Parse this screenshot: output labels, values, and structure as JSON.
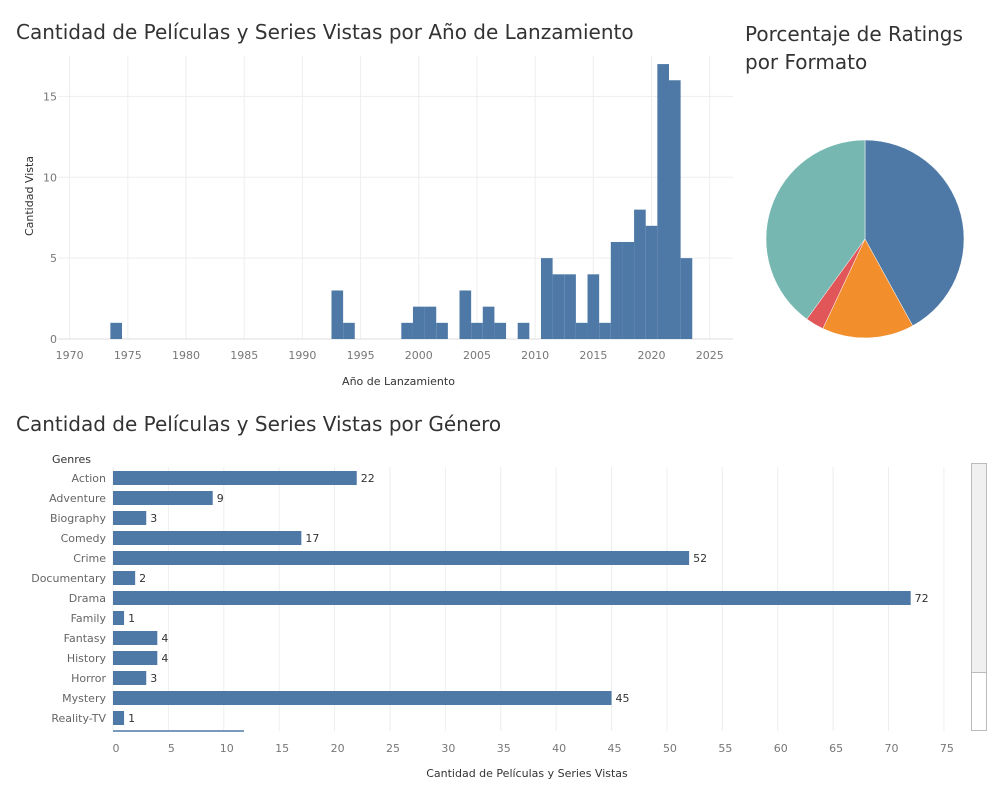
{
  "chart_data": [
    {
      "type": "bar",
      "title": "Cantidad de Películas y Series Vistas por Año de Lanzamiento",
      "xlabel": "Año de Lanzamiento",
      "ylabel": "Cantidad Vista",
      "xlim": [
        1969,
        2027
      ],
      "ylim": [
        0,
        17.5
      ],
      "xticks": [
        1970,
        1975,
        1980,
        1985,
        1990,
        1995,
        2000,
        2005,
        2010,
        2015,
        2020,
        2025
      ],
      "yticks": [
        0,
        5,
        10,
        15
      ],
      "grid": true,
      "color": "#4e79a7",
      "x": [
        1974,
        1993,
        1994,
        1999,
        2000,
        2001,
        2002,
        2004,
        2005,
        2006,
        2007,
        2009,
        2011,
        2012,
        2013,
        2014,
        2015,
        2016,
        2017,
        2018,
        2019,
        2020,
        2021,
        2022,
        2023
      ],
      "values": [
        1,
        3,
        1,
        1,
        2,
        2,
        1,
        3,
        1,
        2,
        1,
        1,
        5,
        4,
        4,
        1,
        4,
        1,
        6,
        6,
        8,
        7,
        17,
        16,
        5
      ]
    },
    {
      "type": "pie",
      "title": "Porcentaje de Ratings por Formato",
      "legend": "none",
      "slices": [
        {
          "value": 42,
          "color": "#4e79a7"
        },
        {
          "value": 15,
          "color": "#f28e2b"
        },
        {
          "value": 3,
          "color": "#e15759"
        },
        {
          "value": 40,
          "color": "#76b7b2"
        }
      ]
    },
    {
      "type": "bar",
      "orientation": "horizontal",
      "title": "Cantidad de Películas y Series Vistas por Género",
      "xlabel": "Cantidad de Películas y Series Vistas",
      "ylabel": "Genres",
      "xlim": [
        0,
        76
      ],
      "xticks": [
        0,
        5,
        10,
        15,
        20,
        25,
        30,
        35,
        40,
        45,
        50,
        55,
        60,
        65,
        70,
        75
      ],
      "grid": true,
      "color": "#4e79a7",
      "categories": [
        "Action",
        "Adventure",
        "Biography",
        "Comedy",
        "Crime",
        "Documentary",
        "Drama",
        "Family",
        "Fantasy",
        "History",
        "Horror",
        "Mystery",
        "Reality-TV"
      ],
      "values": [
        22,
        9,
        3,
        17,
        52,
        2,
        72,
        1,
        4,
        4,
        3,
        45,
        1
      ]
    }
  ]
}
